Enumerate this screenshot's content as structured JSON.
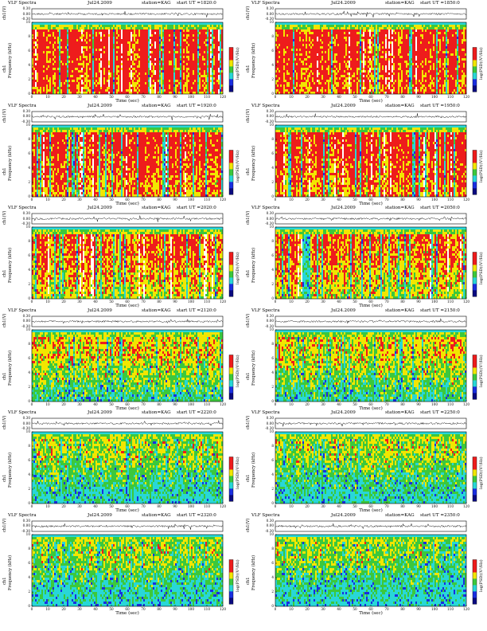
{
  "figure": {
    "series_label": "VLF Spectra",
    "date": "Jul24.2009",
    "station": "station=KAG",
    "start_prefix": "start  UT  =",
    "colorbar_label": "log(PSD)(V²/Hz)",
    "colors": {
      "red": "#ee1c1c",
      "yellow": "#f2e600",
      "green": "#3cc83c",
      "cyan": "#28d7d7",
      "blue": "#1a2ee0",
      "darkblue": "#0a0a80",
      "white": "#ffffff"
    }
  },
  "chart_data": [
    {
      "type": "heatmap",
      "title": "VLF Spectra",
      "date": "Jul24.2009",
      "station": "station=KAG",
      "start_ut": "1820:0",
      "wave_ylabel": "ch1(V)",
      "wave_ticks": [
        "0.30",
        "0.00",
        "-0.30"
      ],
      "ylabel": "ch1\nFrequency (kHz)",
      "xlabel": "Time (sec)",
      "xlim": [
        0,
        120
      ],
      "ylim": [
        0,
        10
      ],
      "xticks": [
        "0",
        "10",
        "20",
        "30",
        "40",
        "50",
        "60",
        "70",
        "80",
        "90",
        "100",
        "110",
        "120"
      ],
      "yticks": [
        "0",
        "2",
        "4",
        "6",
        "8",
        "10"
      ],
      "activity": 0.85,
      "colorbar_label": "log(PSD)(V²/Hz)"
    },
    {
      "type": "heatmap",
      "title": "VLF Spectra",
      "date": "Jul24.2009",
      "station": "station=KAG",
      "start_ut": "1850:0",
      "wave_ylabel": "ch1(V)",
      "wave_ticks": [
        "0.30",
        "0.00",
        "-0.30"
      ],
      "ylabel": "ch1\nFrequency (kHz)",
      "xlabel": "Time (sec)",
      "xlim": [
        0,
        120
      ],
      "ylim": [
        0,
        10
      ],
      "xticks": [
        "0",
        "10",
        "20",
        "30",
        "40",
        "50",
        "60",
        "70",
        "80",
        "90",
        "100",
        "110",
        "120"
      ],
      "yticks": [
        "0",
        "2",
        "4",
        "6",
        "8",
        "10"
      ],
      "activity": 0.85,
      "colorbar_label": "log(PSD)(V²/Hz)"
    },
    {
      "type": "heatmap",
      "title": "VLF Spectra",
      "date": "Jul24.2009",
      "station": "station=KAG",
      "start_ut": "1920:0",
      "wave_ylabel": "ch1(V)",
      "wave_ticks": [
        "0.30",
        "0.00",
        "-0.30"
      ],
      "ylabel": "ch1\nFrequency (kHz)",
      "xlabel": "Time (sec)",
      "xlim": [
        0,
        120
      ],
      "ylim": [
        0,
        10
      ],
      "xticks": [
        "0",
        "10",
        "20",
        "30",
        "40",
        "50",
        "60",
        "70",
        "80",
        "90",
        "100",
        "110",
        "120"
      ],
      "yticks": [
        "0",
        "2",
        "4",
        "6",
        "8",
        "10"
      ],
      "activity": 0.8,
      "colorbar_label": "log(PSD)(V²/Hz)"
    },
    {
      "type": "heatmap",
      "title": "VLF Spectra",
      "date": "Jul24.2009",
      "station": "station=KAG",
      "start_ut": "1950:0",
      "wave_ylabel": "ch1(V)",
      "wave_ticks": [
        "0.30",
        "0.00",
        "-0.30"
      ],
      "ylabel": "ch1\nFrequency (kHz)",
      "xlabel": "Time (sec)",
      "xlim": [
        0,
        120
      ],
      "ylim": [
        0,
        10
      ],
      "xticks": [
        "0",
        "10",
        "20",
        "30",
        "40",
        "50",
        "60",
        "70",
        "80",
        "90",
        "100",
        "110",
        "120"
      ],
      "yticks": [
        "0",
        "2",
        "4",
        "6",
        "8",
        "10"
      ],
      "activity": 0.8,
      "colorbar_label": "log(PSD)(V²/Hz)"
    },
    {
      "type": "heatmap",
      "title": "VLF Spectra",
      "date": "Jul24.2009",
      "station": "station=KAG",
      "start_ut": "2020:0",
      "wave_ylabel": "ch1(V)",
      "wave_ticks": [
        "0.30",
        "0.00",
        "-0.30"
      ],
      "ylabel": "ch1\nFrequency (kHz)",
      "xlabel": "Time (sec)",
      "xlim": [
        0,
        120
      ],
      "ylim": [
        0,
        10
      ],
      "xticks": [
        "0",
        "10",
        "20",
        "30",
        "40",
        "50",
        "60",
        "70",
        "80",
        "90",
        "100",
        "110",
        "120"
      ],
      "yticks": [
        "0",
        "2",
        "4",
        "6",
        "8",
        "10"
      ],
      "activity": 0.7,
      "colorbar_label": "log(PSD)(V²/Hz)"
    },
    {
      "type": "heatmap",
      "title": "VLF Spectra",
      "date": "Jul24.2009",
      "station": "station=KAG",
      "start_ut": "2050:0",
      "wave_ylabel": "ch1(V)",
      "wave_ticks": [
        "0.30",
        "0.00",
        "-0.30"
      ],
      "ylabel": "ch1\nFrequency (kHz)",
      "xlabel": "Time (sec)",
      "xlim": [
        0,
        120
      ],
      "ylim": [
        0,
        10
      ],
      "xticks": [
        "0",
        "10",
        "20",
        "30",
        "40",
        "50",
        "60",
        "70",
        "80",
        "90",
        "100",
        "110",
        "120"
      ],
      "yticks": [
        "0",
        "2",
        "4",
        "6",
        "8",
        "10"
      ],
      "activity": 0.68,
      "colorbar_label": "log(PSD)(V²/Hz)"
    },
    {
      "type": "heatmap",
      "title": "VLF Spectra",
      "date": "Jul24.2009",
      "station": "station=KAG",
      "start_ut": "2120:0",
      "wave_ylabel": "ch1(V)",
      "wave_ticks": [
        "0.30",
        "0.00",
        "-0.30"
      ],
      "ylabel": "ch1\nFrequency (kHz)",
      "xlabel": "Time (sec)",
      "xlim": [
        0,
        120
      ],
      "ylim": [
        0,
        10
      ],
      "xticks": [
        "0",
        "10",
        "20",
        "30",
        "40",
        "50",
        "60",
        "70",
        "80",
        "90",
        "100",
        "110",
        "120"
      ],
      "yticks": [
        "0",
        "2",
        "4",
        "6",
        "8",
        "10"
      ],
      "activity": 0.5,
      "colorbar_label": "log(PSD)(V²/Hz)"
    },
    {
      "type": "heatmap",
      "title": "VLF Spectra",
      "date": "Jul24.2009",
      "station": "station=KAG",
      "start_ut": "2150:0",
      "wave_ylabel": "ch1(V)",
      "wave_ticks": [
        "0.30",
        "0.00",
        "-0.30"
      ],
      "ylabel": "ch1\nFrequency (kHz)",
      "xlabel": "Time (sec)",
      "xlim": [
        0,
        120
      ],
      "ylim": [
        0,
        10
      ],
      "xticks": [
        "0",
        "10",
        "20",
        "30",
        "40",
        "50",
        "60",
        "70",
        "80",
        "90",
        "100",
        "110",
        "120"
      ],
      "yticks": [
        "0",
        "2",
        "4",
        "6",
        "8",
        "10"
      ],
      "activity": 0.5,
      "colorbar_label": "log(PSD)(V²/Hz)"
    },
    {
      "type": "heatmap",
      "title": "VLF Spectra",
      "date": "Jul24.2009",
      "station": "station=KAG",
      "start_ut": "2220:0",
      "wave_ylabel": "ch1(V)",
      "wave_ticks": [
        "0.30",
        "0.00",
        "-0.30"
      ],
      "ylabel": "ch1\nFrequency (kHz)",
      "xlabel": "Time (sec)",
      "xlim": [
        0,
        120
      ],
      "ylim": [
        0,
        10
      ],
      "xticks": [
        "0",
        "10",
        "20",
        "30",
        "40",
        "50",
        "60",
        "70",
        "80",
        "90",
        "100",
        "110",
        "120"
      ],
      "yticks": [
        "0",
        "2",
        "4",
        "6",
        "8",
        "10"
      ],
      "activity": 0.4,
      "colorbar_label": "log(PSD)(V²/Hz)"
    },
    {
      "type": "heatmap",
      "title": "VLF Spectra",
      "date": "Jul24.2009",
      "station": "station=KAG",
      "start_ut": "2250:0",
      "wave_ylabel": "ch1(V)",
      "wave_ticks": [
        "0.30",
        "0.00",
        "-0.30"
      ],
      "ylabel": "ch1\nFrequency (kHz)",
      "xlabel": "Time (sec)",
      "xlim": [
        0,
        120
      ],
      "ylim": [
        0,
        10
      ],
      "xticks": [
        "0",
        "10",
        "20",
        "30",
        "40",
        "50",
        "60",
        "70",
        "80",
        "90",
        "100",
        "110",
        "120"
      ],
      "yticks": [
        "0",
        "2",
        "4",
        "6",
        "8",
        "10"
      ],
      "activity": 0.4,
      "colorbar_label": "log(PSD)(V²/Hz)"
    },
    {
      "type": "heatmap",
      "title": "VLF Spectra",
      "date": "Jul24.2009",
      "station": "station=KAG",
      "start_ut": "2320:0",
      "wave_ylabel": "ch1(V)",
      "wave_ticks": [
        "0.30",
        "0.00",
        "-0.30"
      ],
      "ylabel": "ch1\nFrequency (kHz)",
      "xlabel": "Time (sec)",
      "xlim": [
        0,
        120
      ],
      "ylim": [
        0,
        10
      ],
      "xticks": [
        "0",
        "10",
        "20",
        "30",
        "40",
        "50",
        "60",
        "70",
        "80",
        "90",
        "100",
        "110",
        "120"
      ],
      "yticks": [
        "0",
        "2",
        "4",
        "6",
        "8",
        "10"
      ],
      "activity": 0.38,
      "colorbar_label": "log(PSD)(V²/Hz)"
    },
    {
      "type": "heatmap",
      "title": "VLF Spectra",
      "date": "Jul24.2009",
      "station": "station=KAG",
      "start_ut": "2350:0",
      "wave_ylabel": "ch1(V)",
      "wave_ticks": [
        "0.30",
        "0.00",
        "-0.30"
      ],
      "ylabel": "ch1\nFrequency (kHz)",
      "xlabel": "Time (sec)",
      "xlim": [
        0,
        120
      ],
      "ylim": [
        0,
        10
      ],
      "xticks": [
        "0",
        "10",
        "20",
        "30",
        "40",
        "50",
        "60",
        "70",
        "80",
        "90",
        "100",
        "110",
        "120"
      ],
      "yticks": [
        "0",
        "2",
        "4",
        "6",
        "8",
        "10"
      ],
      "activity": 0.35,
      "colorbar_label": "log(PSD)(V²/Hz)"
    }
  ]
}
